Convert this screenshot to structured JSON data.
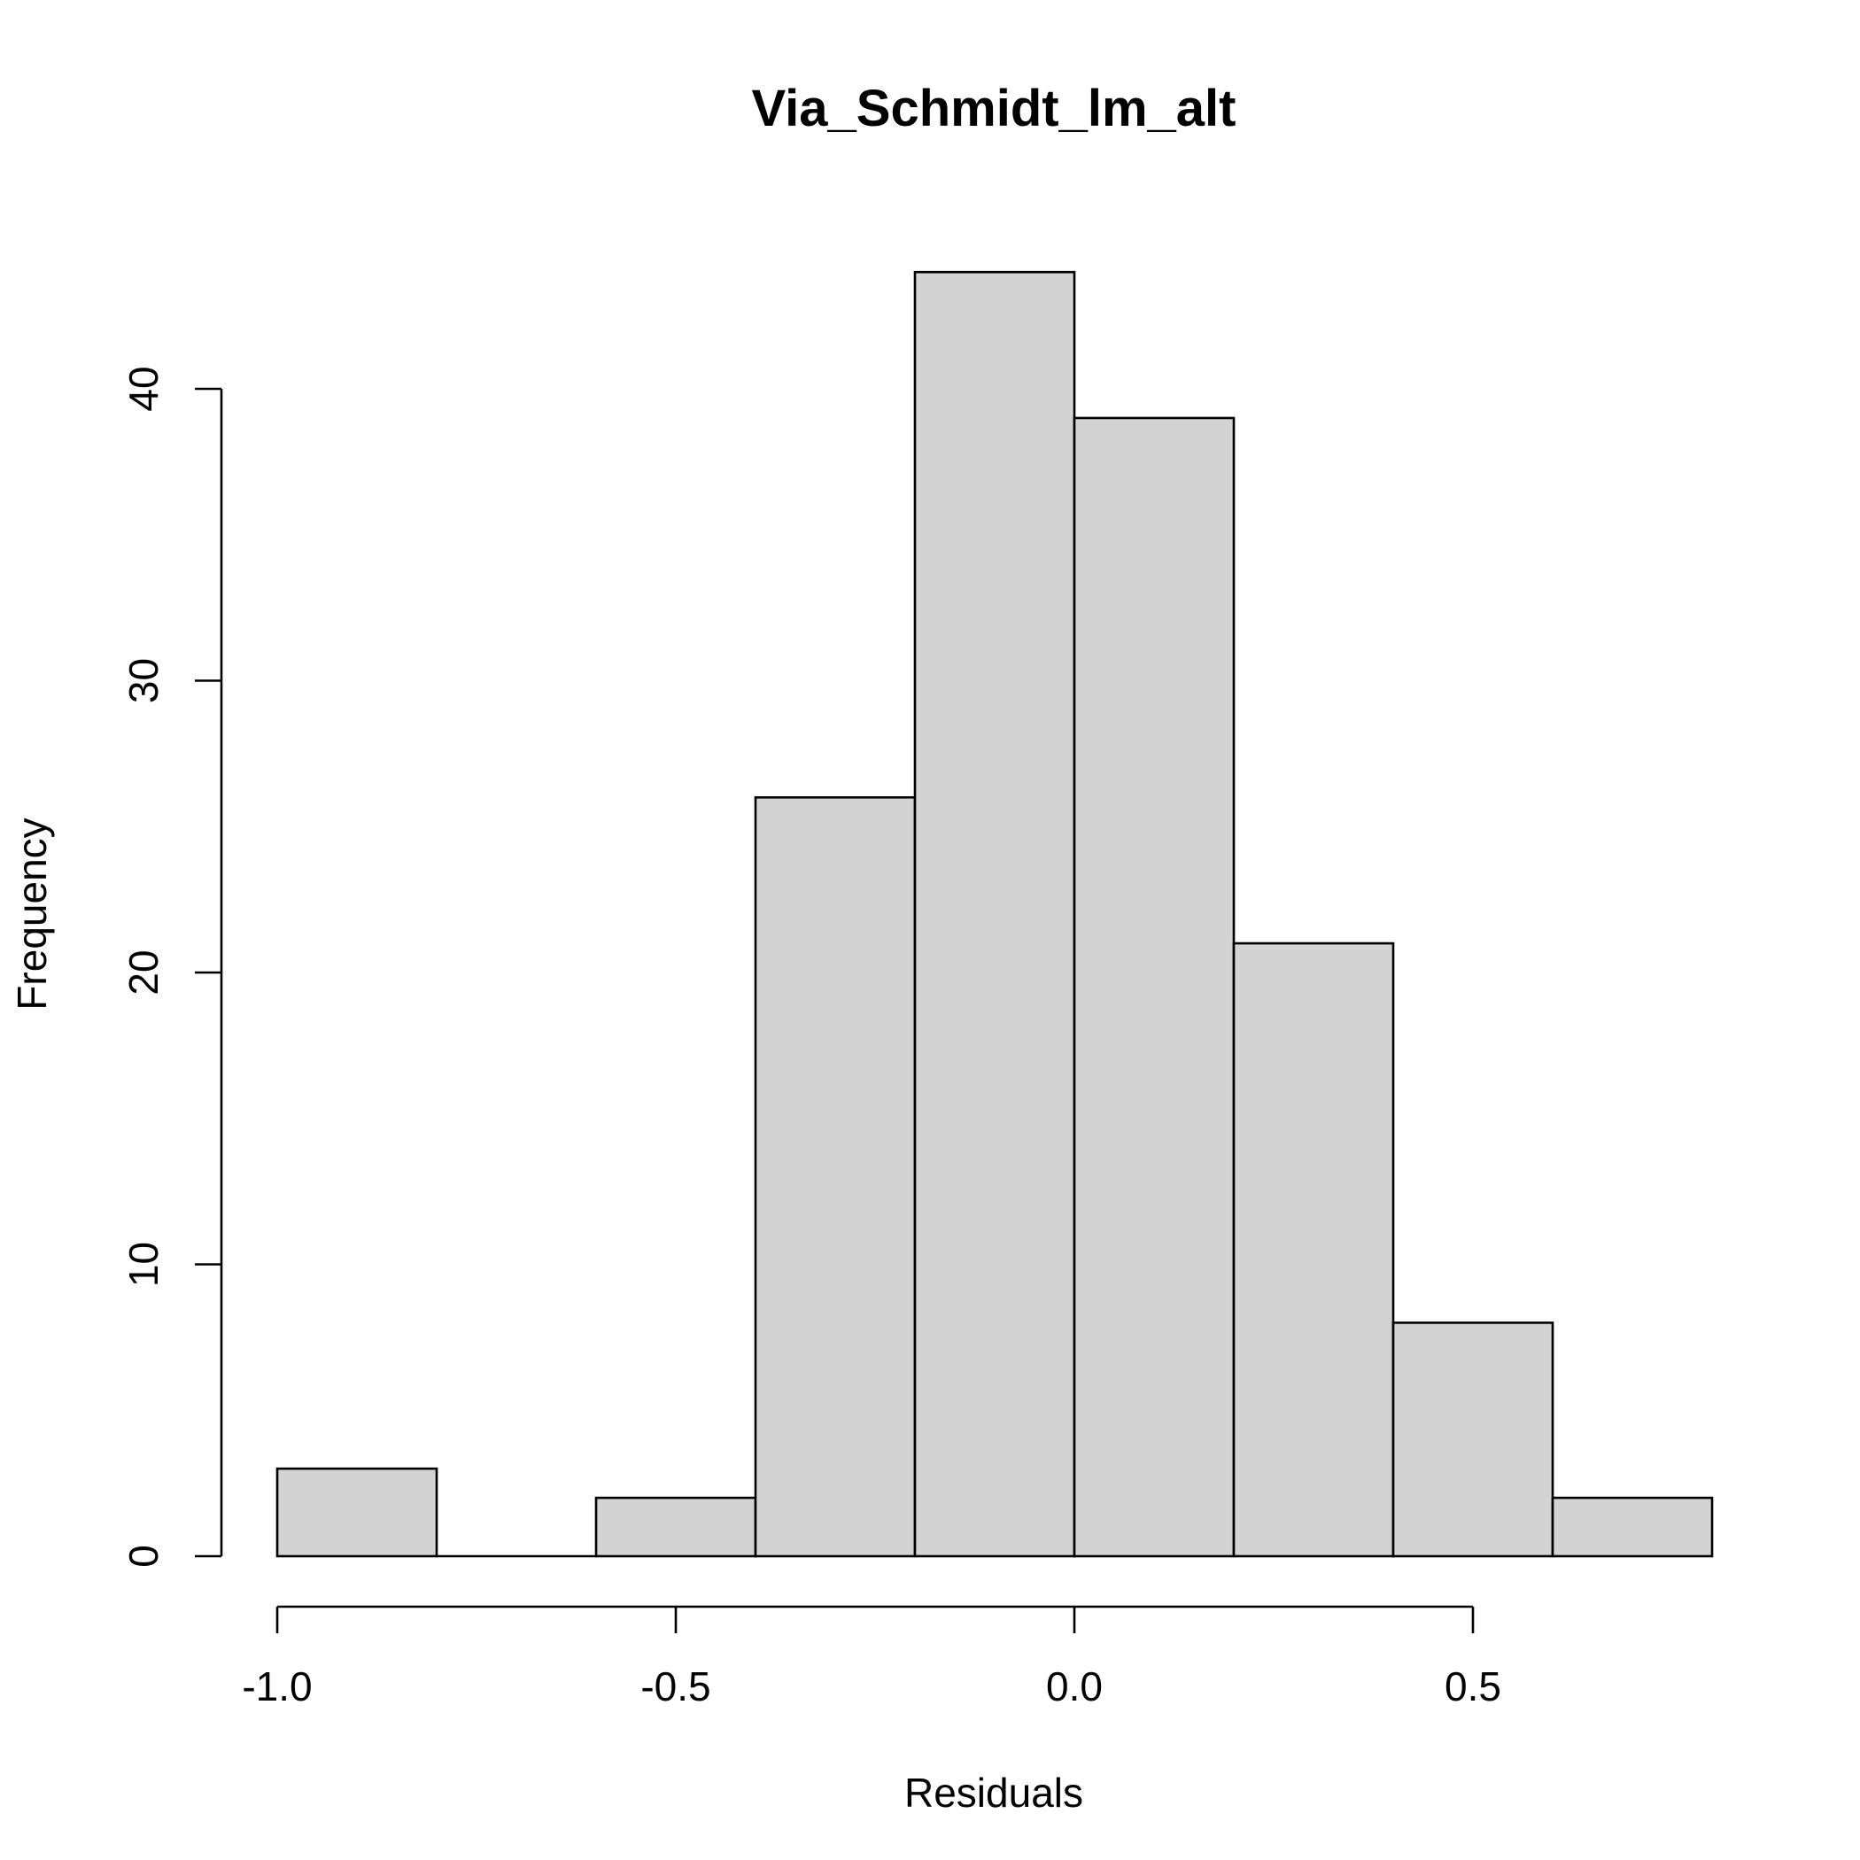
{
  "chart_data": {
    "type": "bar",
    "title": "Via_Schmidt_lm_alt",
    "xlabel": "Residuals",
    "ylabel": "Frequency",
    "bins": [
      {
        "x0": -1.0,
        "x1": -0.8,
        "count": 3
      },
      {
        "x0": -0.8,
        "x1": -0.6,
        "count": 0
      },
      {
        "x0": -0.6,
        "x1": -0.4,
        "count": 2
      },
      {
        "x0": -0.4,
        "x1": -0.2,
        "count": 26
      },
      {
        "x0": -0.2,
        "x1": 0.0,
        "count": 44
      },
      {
        "x0": 0.0,
        "x1": 0.2,
        "count": 39
      },
      {
        "x0": 0.2,
        "x1": 0.4,
        "count": 21
      },
      {
        "x0": 0.4,
        "x1": 0.6,
        "count": 8
      },
      {
        "x0": 0.6,
        "x1": 0.8,
        "count": 2
      }
    ],
    "xticks": [
      -1.0,
      -0.5,
      0.0,
      0.5
    ],
    "xtick_labels": [
      "-1.0",
      "-0.5",
      "0.0",
      "0.5"
    ],
    "yticks": [
      0,
      10,
      20,
      30,
      40
    ],
    "ytick_labels": [
      "0",
      "10",
      "20",
      "30",
      "40"
    ],
    "xlim": [
      -1.0,
      0.8
    ],
    "ylim": [
      0,
      44
    ],
    "grid": false,
    "legend": false,
    "colors": {
      "bar_fill": "#d3d3d3",
      "bar_stroke": "#000000"
    }
  }
}
